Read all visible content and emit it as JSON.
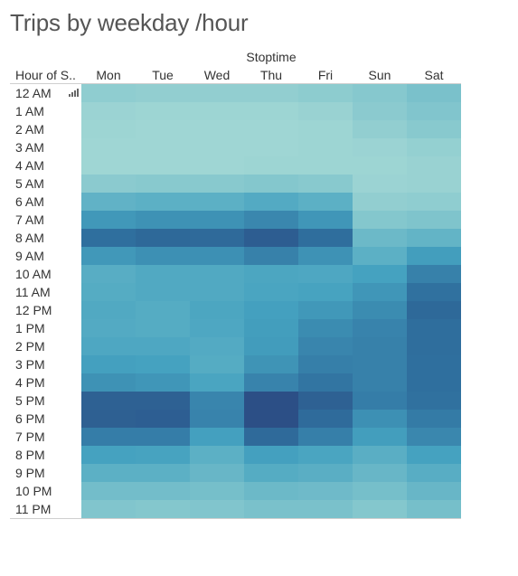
{
  "chart_data": {
    "type": "heatmap",
    "title": "Trips by weekday /hour",
    "column_group_label": "Stoptime",
    "row_header_label": "Hour of S..",
    "columns": [
      "Mon",
      "Tue",
      "Wed",
      "Thu",
      "Fri",
      "Sun",
      "Sat"
    ],
    "rows": [
      "12 AM",
      "1 AM",
      "2 AM",
      "3 AM",
      "4 AM",
      "5 AM",
      "6 AM",
      "7 AM",
      "8 AM",
      "9 AM",
      "10 AM",
      "11 AM",
      "12 PM",
      "1 PM",
      "2 PM",
      "3 PM",
      "4 PM",
      "5 PM",
      "6 PM",
      "7 PM",
      "8 PM",
      "9 PM",
      "10 PM",
      "11 PM"
    ],
    "values": [
      [
        0.18,
        0.17,
        0.17,
        0.17,
        0.19,
        0.22,
        0.27
      ],
      [
        0.13,
        0.12,
        0.12,
        0.12,
        0.14,
        0.2,
        0.24
      ],
      [
        0.12,
        0.11,
        0.11,
        0.11,
        0.12,
        0.17,
        0.21
      ],
      [
        0.11,
        0.11,
        0.11,
        0.11,
        0.12,
        0.13,
        0.16
      ],
      [
        0.11,
        0.11,
        0.11,
        0.12,
        0.12,
        0.12,
        0.14
      ],
      [
        0.2,
        0.21,
        0.21,
        0.23,
        0.21,
        0.13,
        0.14
      ],
      [
        0.38,
        0.4,
        0.4,
        0.44,
        0.4,
        0.17,
        0.18
      ],
      [
        0.55,
        0.58,
        0.58,
        0.63,
        0.56,
        0.23,
        0.25
      ],
      [
        0.75,
        0.8,
        0.79,
        0.89,
        0.76,
        0.33,
        0.37
      ],
      [
        0.55,
        0.59,
        0.59,
        0.66,
        0.58,
        0.4,
        0.52
      ],
      [
        0.42,
        0.45,
        0.45,
        0.47,
        0.46,
        0.5,
        0.66
      ],
      [
        0.43,
        0.45,
        0.45,
        0.48,
        0.49,
        0.56,
        0.74
      ],
      [
        0.45,
        0.43,
        0.47,
        0.51,
        0.55,
        0.61,
        0.8
      ],
      [
        0.44,
        0.43,
        0.46,
        0.52,
        0.61,
        0.65,
        0.76
      ],
      [
        0.46,
        0.46,
        0.44,
        0.53,
        0.64,
        0.66,
        0.76
      ],
      [
        0.51,
        0.5,
        0.43,
        0.57,
        0.67,
        0.66,
        0.75
      ],
      [
        0.58,
        0.56,
        0.48,
        0.65,
        0.72,
        0.66,
        0.75
      ],
      [
        0.86,
        0.86,
        0.64,
        1.0,
        0.86,
        0.68,
        0.74
      ],
      [
        0.87,
        0.88,
        0.65,
        1.0,
        0.78,
        0.59,
        0.69
      ],
      [
        0.68,
        0.68,
        0.51,
        0.79,
        0.67,
        0.52,
        0.63
      ],
      [
        0.5,
        0.49,
        0.4,
        0.51,
        0.48,
        0.41,
        0.5
      ],
      [
        0.4,
        0.4,
        0.35,
        0.43,
        0.41,
        0.35,
        0.42
      ],
      [
        0.3,
        0.3,
        0.29,
        0.33,
        0.32,
        0.29,
        0.35
      ],
      [
        0.24,
        0.23,
        0.24,
        0.27,
        0.27,
        0.23,
        0.29
      ]
    ],
    "color_scale": [
      "#b9e4da",
      "#7fc4cc",
      "#45a2c0",
      "#2f6f9e",
      "#2c4f86"
    ],
    "legend": "none",
    "grid": false
  }
}
